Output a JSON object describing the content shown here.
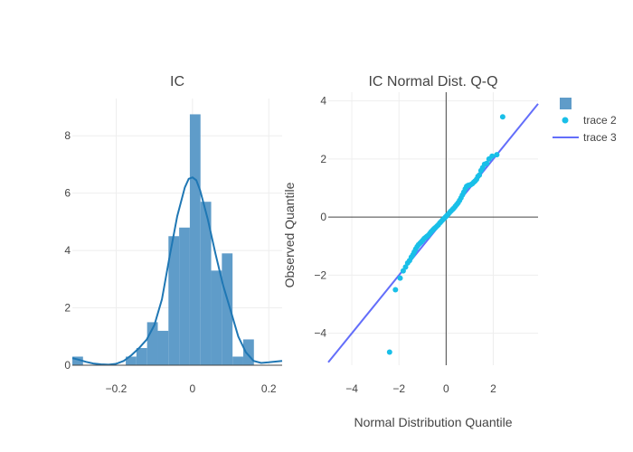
{
  "chart_data": [
    {
      "type": "bar",
      "title": "IC",
      "xlabel": "",
      "ylabel": "",
      "xlim": [
        -0.315,
        0.235
      ],
      "ylim": [
        0,
        9.3
      ],
      "xticks": [
        -0.2,
        0,
        0.2
      ],
      "xtick_labels": [
        "−0.2",
        "0",
        "0.2"
      ],
      "yticks": [
        0,
        2,
        4,
        6,
        8
      ],
      "ytick_labels": [
        "0",
        "2",
        "4",
        "6",
        "8"
      ],
      "grid": true,
      "bar_color": "#5f9cc9",
      "kde_color": "#1f77b4",
      "bins": [
        {
          "x0": -0.315,
          "x1": -0.287,
          "count": 0.3
        },
        {
          "x0": -0.175,
          "x1": -0.147,
          "count": 0.3
        },
        {
          "x0": -0.147,
          "x1": -0.119,
          "count": 0.6
        },
        {
          "x0": -0.119,
          "x1": -0.091,
          "count": 1.5
        },
        {
          "x0": -0.091,
          "x1": -0.063,
          "count": 1.2
        },
        {
          "x0": -0.063,
          "x1": -0.035,
          "count": 4.5
        },
        {
          "x0": -0.035,
          "x1": -0.007,
          "count": 4.8
        },
        {
          "x0": -0.007,
          "x1": 0.021,
          "count": 8.75
        },
        {
          "x0": 0.021,
          "x1": 0.049,
          "count": 5.7
        },
        {
          "x0": 0.049,
          "x1": 0.077,
          "count": 3.3
        },
        {
          "x0": 0.077,
          "x1": 0.105,
          "count": 3.9
        },
        {
          "x0": 0.105,
          "x1": 0.133,
          "count": 0.3
        },
        {
          "x0": 0.133,
          "x1": 0.161,
          "count": 0.9
        }
      ],
      "kde": {
        "x": [
          -0.315,
          -0.3,
          -0.28,
          -0.26,
          -0.24,
          -0.22,
          -0.2,
          -0.18,
          -0.16,
          -0.14,
          -0.12,
          -0.1,
          -0.08,
          -0.06,
          -0.04,
          -0.02,
          -0.01,
          0,
          0.01,
          0.02,
          0.04,
          0.06,
          0.08,
          0.1,
          0.12,
          0.14,
          0.16,
          0.18,
          0.2,
          0.235
        ],
        "y": [
          0.25,
          0.2,
          0.12,
          0.06,
          0.03,
          0.02,
          0.05,
          0.15,
          0.35,
          0.6,
          0.9,
          1.4,
          2.3,
          3.8,
          5.2,
          6.2,
          6.5,
          6.55,
          6.45,
          6.1,
          5.1,
          3.9,
          2.8,
          1.9,
          1.0,
          0.45,
          0.15,
          0.08,
          0.1,
          0.15
        ]
      }
    },
    {
      "type": "scatter",
      "title": "IC Normal Dist. Q-Q",
      "xlabel": "Normal Distribution Quantile",
      "ylabel": "Observed Quantile",
      "xlim": [
        -5.0,
        3.9
      ],
      "ylim": [
        -5.1,
        4.3
      ],
      "xticks": [
        -4,
        -2,
        0,
        2
      ],
      "xtick_labels": [
        "−4",
        "−2",
        "0",
        "2"
      ],
      "yticks": [
        -4,
        -2,
        0,
        2,
        4
      ],
      "ytick_labels": [
        "−4",
        "−2",
        "0",
        "2",
        "4"
      ],
      "grid": true,
      "zero_lines": true,
      "legend_position": "right",
      "series": [
        {
          "name": "",
          "type": "bar",
          "color": "#5f9cc9"
        },
        {
          "name": "trace 2",
          "type": "scatter",
          "color": "#19bfe8",
          "x": [
            -2.4,
            -2.15,
            -1.95,
            -1.82,
            -1.72,
            -1.63,
            -1.55,
            -1.48,
            -1.41,
            -1.35,
            -1.29,
            -1.23,
            -1.17,
            -1.11,
            -1.05,
            -0.99,
            -0.93,
            -0.87,
            -0.81,
            -0.75,
            -0.69,
            -0.63,
            -0.57,
            -0.51,
            -0.45,
            -0.39,
            -0.33,
            -0.27,
            -0.21,
            -0.15,
            -0.09,
            -0.03,
            0.03,
            0.09,
            0.15,
            0.21,
            0.27,
            0.33,
            0.39,
            0.45,
            0.51,
            0.57,
            0.63,
            0.69,
            0.75,
            0.81,
            0.87,
            0.93,
            0.99,
            1.05,
            1.11,
            1.17,
            1.23,
            1.29,
            1.35,
            1.41,
            1.48,
            1.55,
            1.63,
            1.72,
            1.82,
            1.95,
            2.15,
            2.4
          ],
          "y": [
            -4.65,
            -2.5,
            -2.1,
            -1.85,
            -1.72,
            -1.58,
            -1.5,
            -1.38,
            -1.3,
            -1.2,
            -1.1,
            -1.02,
            -0.95,
            -0.9,
            -0.85,
            -0.8,
            -0.74,
            -0.7,
            -0.66,
            -0.62,
            -0.56,
            -0.5,
            -0.45,
            -0.4,
            -0.36,
            -0.31,
            -0.27,
            -0.2,
            -0.15,
            -0.1,
            -0.05,
            0.0,
            0.05,
            0.1,
            0.16,
            0.21,
            0.26,
            0.31,
            0.37,
            0.43,
            0.49,
            0.57,
            0.66,
            0.76,
            0.86,
            0.97,
            1.06,
            1.09,
            1.1,
            1.12,
            1.15,
            1.2,
            1.24,
            1.3,
            1.4,
            1.45,
            1.6,
            1.7,
            1.82,
            1.85,
            2.0,
            2.1,
            2.15,
            3.45
          ]
        },
        {
          "name": "trace 3",
          "type": "line",
          "color": "#636efa",
          "x": [
            -5.0,
            3.9
          ],
          "y": [
            -5.0,
            3.9
          ]
        }
      ],
      "legend": [
        "",
        "trace 2",
        "trace 3"
      ]
    }
  ]
}
